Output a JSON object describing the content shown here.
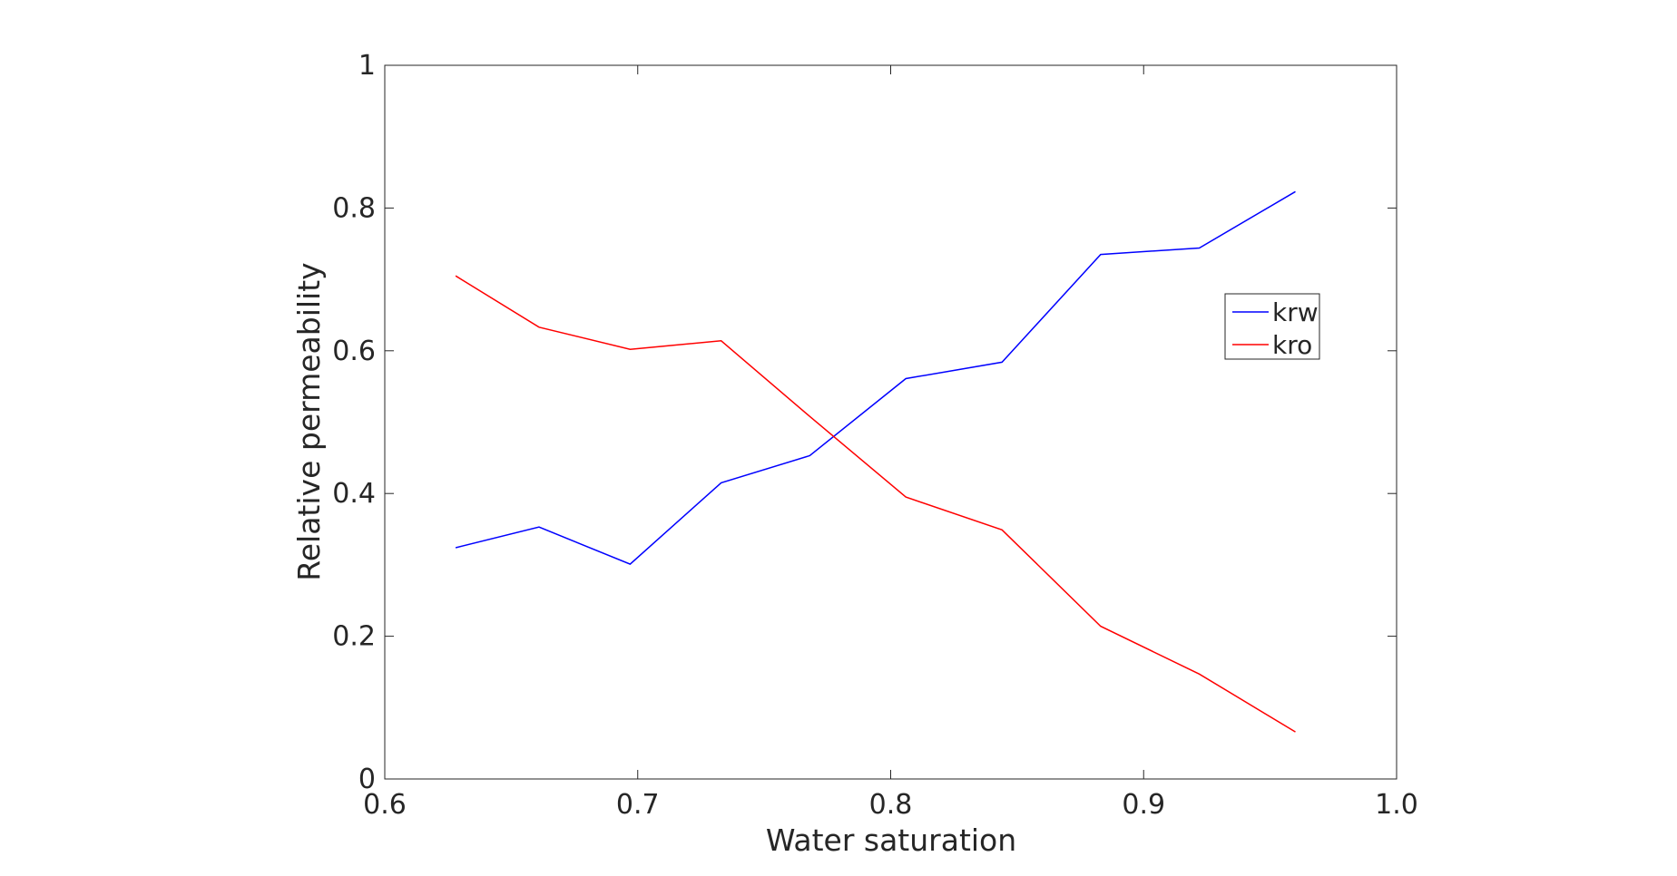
{
  "chart_data": {
    "type": "line",
    "xlabel": "Water saturation",
    "ylabel": "Relative permeability",
    "xlim": [
      0.6,
      1.0
    ],
    "ylim": [
      0,
      1
    ],
    "x_ticks": [
      0.6,
      0.7,
      0.8,
      0.9,
      1.0
    ],
    "x_tick_labels": [
      "0.6",
      "0.7",
      "0.8",
      "0.9",
      "1.0"
    ],
    "y_ticks": [
      0,
      0.2,
      0.4,
      0.6,
      0.8,
      1
    ],
    "y_tick_labels": [
      "0",
      "0.2",
      "0.4",
      "0.6",
      "0.8",
      "1"
    ],
    "grid": false,
    "box": true,
    "legend_position": "right",
    "series": [
      {
        "name": "krw",
        "color": "#0000ff",
        "x": [
          0.628,
          0.661,
          0.697,
          0.733,
          0.768,
          0.806,
          0.844,
          0.883,
          0.922,
          0.96
        ],
        "y": [
          0.324,
          0.353,
          0.301,
          0.415,
          0.453,
          0.561,
          0.584,
          0.735,
          0.744,
          0.823
        ]
      },
      {
        "name": "kro",
        "color": "#ff0000",
        "x": [
          0.628,
          0.661,
          0.697,
          0.733,
          0.768,
          0.806,
          0.844,
          0.883,
          0.922,
          0.96
        ],
        "y": [
          0.705,
          0.633,
          0.602,
          0.614,
          0.508,
          0.395,
          0.349,
          0.214,
          0.147,
          0.066
        ]
      }
    ]
  }
}
